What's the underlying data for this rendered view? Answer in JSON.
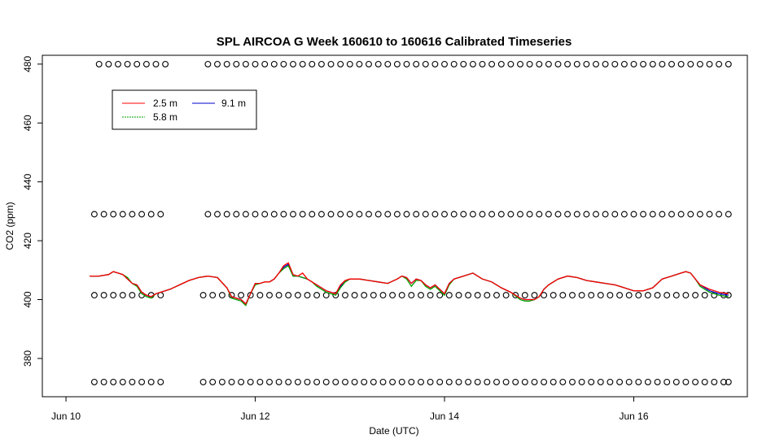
{
  "chart_data": {
    "type": "line",
    "title": "SPL AIRCOA G  Week 160610 to 160616  Calibrated Timeseries",
    "xlabel": "Date (UTC)",
    "ylabel": "CO2 (ppm)",
    "xlim": [
      -0.25,
      7.2
    ],
    "ylim": [
      367,
      483
    ],
    "x_ticks": [
      {
        "label": "Jun 10",
        "value": 0
      },
      {
        "label": "Jun 12",
        "value": 2
      },
      {
        "label": "Jun 14",
        "value": 4
      },
      {
        "label": "Jun 16",
        "value": 6
      }
    ],
    "y_ticks": [
      380,
      400,
      420,
      440,
      460,
      480
    ],
    "grid": false,
    "legend": {
      "placement": "top-left",
      "entries": [
        {
          "label": "2.5 m",
          "color": "#ff0000"
        },
        {
          "label": "5.8 m",
          "color": "#00a000"
        },
        {
          "label": "9.1 m",
          "color": "#0000cc"
        }
      ]
    },
    "series": [
      {
        "name": "9.1 m",
        "color": "#0000cc",
        "x": [
          0.25,
          0.35,
          0.45,
          0.5,
          0.55,
          0.6,
          0.65,
          0.7,
          0.75,
          0.8,
          0.85,
          0.9,
          0.95,
          1.0,
          1.1,
          1.2,
          1.3,
          1.4,
          1.5,
          1.6,
          1.7,
          1.75,
          1.8,
          1.85,
          1.9,
          1.95,
          2.0,
          2.05,
          2.1,
          2.15,
          2.2,
          2.25,
          2.3,
          2.35,
          2.4,
          2.45,
          2.5,
          2.55,
          2.6,
          2.65,
          2.7,
          2.75,
          2.8,
          2.85,
          2.9,
          2.95,
          3.0,
          3.1,
          3.2,
          3.3,
          3.4,
          3.5,
          3.55,
          3.6,
          3.65,
          3.7,
          3.75,
          3.8,
          3.85,
          3.9,
          3.95,
          4.0,
          4.05,
          4.1,
          4.2,
          4.3,
          4.4,
          4.5,
          4.6,
          4.7,
          4.8,
          4.85,
          4.9,
          4.95,
          5.0,
          5.05,
          5.1,
          5.2,
          5.3,
          5.4,
          5.5,
          5.6,
          5.7,
          5.8,
          5.9,
          6.0,
          6.1,
          6.2,
          6.3,
          6.4,
          6.5,
          6.55,
          6.6,
          6.65,
          6.7,
          6.8,
          6.9,
          7.0
        ],
        "values": [
          408,
          408,
          408.5,
          409.5,
          409,
          408.5,
          407,
          405.5,
          405,
          402.5,
          401.5,
          401,
          402,
          402.5,
          403.5,
          405,
          406.5,
          407.5,
          408,
          407.5,
          404,
          401,
          400.5,
          400,
          398.5,
          402,
          405.5,
          405.5,
          406,
          406,
          407,
          409,
          411,
          412,
          408,
          408,
          407.5,
          407,
          406,
          405,
          404,
          403,
          402.5,
          402,
          404.5,
          406,
          407,
          407,
          406.5,
          406,
          405.5,
          407,
          408,
          407.5,
          405.5,
          407,
          406.5,
          405,
          404,
          405,
          403.5,
          402,
          405.5,
          407,
          408,
          409,
          407,
          406,
          404,
          402.5,
          400.5,
          400,
          400,
          400,
          401,
          403.5,
          405,
          407,
          408,
          407.5,
          406.5,
          406,
          405.5,
          405,
          404,
          403,
          403,
          404,
          407,
          408,
          409,
          409.5,
          409,
          407,
          405,
          403,
          402,
          401.5
        ]
      },
      {
        "name": "5.8 m",
        "color": "#00a000",
        "x": [
          0.25,
          0.35,
          0.45,
          0.5,
          0.55,
          0.6,
          0.65,
          0.7,
          0.75,
          0.8,
          0.85,
          0.9,
          0.95,
          1.0,
          1.1,
          1.2,
          1.3,
          1.4,
          1.5,
          1.6,
          1.7,
          1.75,
          1.8,
          1.85,
          1.9,
          1.95,
          2.0,
          2.05,
          2.1,
          2.15,
          2.2,
          2.25,
          2.3,
          2.35,
          2.4,
          2.45,
          2.5,
          2.55,
          2.6,
          2.65,
          2.7,
          2.75,
          2.8,
          2.85,
          2.9,
          2.95,
          3.0,
          3.1,
          3.2,
          3.3,
          3.4,
          3.5,
          3.55,
          3.6,
          3.65,
          3.7,
          3.75,
          3.8,
          3.85,
          3.9,
          3.95,
          4.0,
          4.05,
          4.1,
          4.2,
          4.3,
          4.4,
          4.5,
          4.6,
          4.7,
          4.8,
          4.85,
          4.9,
          4.95,
          5.0,
          5.05,
          5.1,
          5.2,
          5.3,
          5.4,
          5.5,
          5.6,
          5.7,
          5.8,
          5.9,
          6.0,
          6.1,
          6.2,
          6.3,
          6.4,
          6.5,
          6.55,
          6.6,
          6.65,
          6.7,
          6.8,
          6.9,
          7.0
        ],
        "values": [
          408,
          408,
          408.5,
          409.5,
          409,
          408.5,
          407.5,
          405.5,
          404.5,
          402,
          401,
          400.5,
          402,
          402.5,
          403.5,
          405,
          406.5,
          407.5,
          408,
          407.5,
          404,
          400.5,
          400,
          399.5,
          398,
          402,
          405,
          405.5,
          406,
          406,
          407,
          409,
          410.5,
          411.5,
          408,
          408,
          407.5,
          407,
          406,
          404.5,
          403.5,
          402.5,
          402,
          401.5,
          404,
          406,
          407,
          407,
          406.5,
          406,
          405.5,
          407,
          408,
          407,
          404.5,
          406.5,
          406.5,
          404.5,
          403.5,
          404.5,
          403,
          401.5,
          405,
          407,
          408,
          409,
          407,
          406,
          404,
          402.5,
          400,
          399.5,
          399.5,
          400,
          401,
          403.5,
          405,
          407,
          408,
          407.5,
          406.5,
          406,
          405.5,
          405,
          404,
          403,
          403,
          404,
          407,
          408,
          409,
          409.5,
          409,
          407,
          404.5,
          402.5,
          401.5,
          401
        ]
      },
      {
        "name": "2.5 m",
        "color": "#ff0000",
        "x": [
          0.25,
          0.35,
          0.45,
          0.5,
          0.55,
          0.6,
          0.65,
          0.7,
          0.75,
          0.8,
          0.85,
          0.9,
          0.95,
          1.0,
          1.1,
          1.2,
          1.3,
          1.4,
          1.5,
          1.6,
          1.7,
          1.75,
          1.8,
          1.85,
          1.9,
          1.95,
          2.0,
          2.05,
          2.1,
          2.15,
          2.2,
          2.25,
          2.3,
          2.35,
          2.4,
          2.45,
          2.5,
          2.55,
          2.6,
          2.65,
          2.7,
          2.75,
          2.8,
          2.85,
          2.9,
          2.95,
          3.0,
          3.1,
          3.2,
          3.3,
          3.4,
          3.5,
          3.55,
          3.6,
          3.65,
          3.7,
          3.75,
          3.8,
          3.85,
          3.9,
          3.95,
          4.0,
          4.05,
          4.1,
          4.2,
          4.3,
          4.4,
          4.5,
          4.6,
          4.7,
          4.8,
          4.85,
          4.9,
          4.95,
          5.0,
          5.05,
          5.1,
          5.2,
          5.3,
          5.4,
          5.5,
          5.6,
          5.7,
          5.8,
          5.9,
          6.0,
          6.1,
          6.2,
          6.3,
          6.4,
          6.5,
          6.55,
          6.6,
          6.65,
          6.7,
          6.8,
          6.9,
          7.0
        ],
        "values": [
          408,
          408,
          408.5,
          409.5,
          409,
          408.5,
          407,
          405.5,
          405,
          402.5,
          401.5,
          401,
          402,
          402.5,
          403.5,
          405,
          406.5,
          407.5,
          408,
          407.5,
          404,
          401,
          400.5,
          400,
          398.5,
          402,
          405.5,
          405.5,
          406,
          406,
          407,
          409,
          411.5,
          412.5,
          408.5,
          408,
          409,
          407,
          406,
          405,
          404,
          403,
          402.5,
          402,
          405,
          406.5,
          407,
          407,
          406.5,
          406,
          405.5,
          407,
          408,
          407.5,
          405.5,
          407,
          406.5,
          405,
          404,
          405,
          403.5,
          402,
          405.5,
          407,
          408,
          409,
          407,
          406,
          404,
          402.5,
          400.5,
          400,
          400,
          400,
          401,
          403.5,
          405,
          407,
          408,
          407.5,
          406.5,
          406,
          405.5,
          405,
          404,
          403,
          403,
          404,
          407,
          408,
          409,
          409.5,
          409,
          407,
          405,
          403.5,
          402.5,
          402
        ]
      }
    ],
    "flag_markers": {
      "color": "#000000",
      "rows": [
        {
          "y": 480,
          "x": [
            0.35,
            0.45,
            0.55,
            0.65,
            0.75,
            0.85,
            0.95,
            1.05,
            1.5,
            1.6,
            1.7,
            1.8,
            1.9,
            2.0,
            2.1,
            2.2,
            2.3,
            2.4,
            2.5,
            2.6,
            2.7,
            2.8,
            2.9,
            3.0,
            3.1,
            3.2,
            3.3,
            3.4,
            3.5,
            3.6,
            3.7,
            3.8,
            3.9,
            4.0,
            4.1,
            4.2,
            4.3,
            4.4,
            4.5,
            4.6,
            4.7,
            4.8,
            4.9,
            5.0,
            5.1,
            5.2,
            5.3,
            5.4,
            5.5,
            5.6,
            5.7,
            5.8,
            5.9,
            6.0,
            6.1,
            6.2,
            6.3,
            6.4,
            6.5,
            6.6,
            6.7,
            6.8,
            6.9,
            7.0
          ]
        },
        {
          "y": 429,
          "x": [
            0.3,
            0.4,
            0.5,
            0.6,
            0.7,
            0.8,
            0.9,
            1.0,
            1.5,
            1.6,
            1.7,
            1.8,
            1.9,
            2.0,
            2.1,
            2.2,
            2.3,
            2.4,
            2.5,
            2.6,
            2.7,
            2.8,
            2.9,
            3.0,
            3.1,
            3.2,
            3.3,
            3.4,
            3.5,
            3.6,
            3.7,
            3.8,
            3.9,
            4.0,
            4.1,
            4.2,
            4.3,
            4.4,
            4.5,
            4.6,
            4.7,
            4.8,
            4.9,
            5.0,
            5.1,
            5.2,
            5.3,
            5.4,
            5.5,
            5.6,
            5.7,
            5.8,
            5.9,
            6.0,
            6.1,
            6.2,
            6.3,
            6.4,
            6.5,
            6.6,
            6.7,
            6.8,
            6.9,
            7.0
          ]
        },
        {
          "y": 401.5,
          "x": [
            0.3,
            0.4,
            0.5,
            0.6,
            0.7,
            0.8,
            0.9,
            1.0,
            1.45,
            1.55,
            1.65,
            1.75,
            1.85,
            1.95,
            2.05,
            2.15,
            2.25,
            2.35,
            2.45,
            2.55,
            2.65,
            2.75,
            2.85,
            2.95,
            3.05,
            3.15,
            3.25,
            3.35,
            3.45,
            3.55,
            3.65,
            3.75,
            3.85,
            3.95,
            4.05,
            4.15,
            4.25,
            4.35,
            4.45,
            4.55,
            4.65,
            4.75,
            4.85,
            4.95,
            5.05,
            5.15,
            5.25,
            5.35,
            5.45,
            5.55,
            5.65,
            5.75,
            5.85,
            5.95,
            6.05,
            6.15,
            6.25,
            6.35,
            6.45,
            6.55,
            6.65,
            6.75,
            6.85,
            6.95,
            7.0
          ]
        },
        {
          "y": 372,
          "x": [
            0.3,
            0.4,
            0.5,
            0.6,
            0.7,
            0.8,
            0.9,
            1.0,
            1.45,
            1.55,
            1.65,
            1.75,
            1.85,
            1.95,
            2.05,
            2.15,
            2.25,
            2.35,
            2.45,
            2.55,
            2.65,
            2.75,
            2.85,
            2.95,
            3.05,
            3.15,
            3.25,
            3.35,
            3.45,
            3.55,
            3.65,
            3.75,
            3.85,
            3.95,
            4.05,
            4.15,
            4.25,
            4.35,
            4.45,
            4.55,
            4.65,
            4.75,
            4.85,
            4.95,
            5.05,
            5.15,
            5.25,
            5.35,
            5.45,
            5.55,
            5.65,
            5.75,
            5.85,
            5.95,
            6.05,
            6.15,
            6.25,
            6.35,
            6.45,
            6.55,
            6.65,
            6.75,
            6.85,
            6.95,
            7.0
          ]
        }
      ]
    }
  }
}
